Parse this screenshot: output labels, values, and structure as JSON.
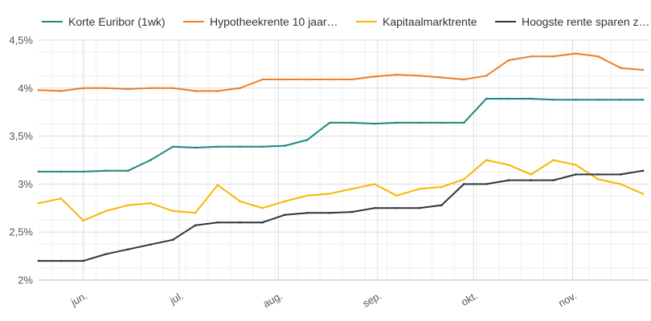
{
  "chart_data": {
    "type": "line",
    "title": "",
    "xlabel": "",
    "ylabel": "",
    "ylim": [
      2,
      4.5
    ],
    "grid": true,
    "legend_position": "top",
    "x_ticks": [
      "jun.",
      "jul.",
      "aug.",
      "sep.",
      "okt.",
      "nov."
    ],
    "y_ticks": [
      "2%",
      "2,5%",
      "3%",
      "3,5%",
      "4%",
      "4,5%"
    ],
    "y_tick_values": [
      2,
      2.5,
      3,
      3.5,
      4,
      4.5
    ],
    "x": [
      "2022-05-18",
      "2022-05-25",
      "2022-06-01",
      "2022-06-08",
      "2022-06-15",
      "2022-06-22",
      "2022-06-29",
      "2022-07-06",
      "2022-07-13",
      "2022-07-20",
      "2022-07-27",
      "2022-08-03",
      "2022-08-10",
      "2022-08-17",
      "2022-08-24",
      "2022-08-31",
      "2022-09-07",
      "2022-09-14",
      "2022-09-21",
      "2022-09-28",
      "2022-10-05",
      "2022-10-12",
      "2022-10-19",
      "2022-10-26",
      "2022-11-02",
      "2022-11-09",
      "2022-11-16",
      "2022-11-23"
    ],
    "series": [
      {
        "name": "Korte Euribor (1wk)",
        "color": "#1a8a7f",
        "values": [
          3.13,
          3.13,
          3.13,
          3.14,
          3.14,
          3.25,
          3.39,
          3.38,
          3.39,
          3.39,
          3.39,
          3.4,
          3.46,
          3.64,
          3.64,
          3.63,
          3.64,
          3.64,
          3.64,
          3.64,
          3.89,
          3.89,
          3.89,
          3.88,
          3.88,
          3.88,
          3.88,
          3.88
        ]
      },
      {
        "name": "Hypotheekrente 10 jaar…",
        "color": "#ef7d22",
        "values": [
          3.98,
          3.97,
          4.0,
          4.0,
          3.99,
          4.0,
          4.0,
          3.97,
          3.97,
          4.0,
          4.09,
          4.09,
          4.09,
          4.09,
          4.09,
          4.12,
          4.14,
          4.13,
          4.11,
          4.09,
          4.13,
          4.29,
          4.33,
          4.33,
          4.36,
          4.33,
          4.21,
          4.19
        ]
      },
      {
        "name": "Kapitaalmarktrente",
        "color": "#f5b800",
        "values": [
          2.8,
          2.85,
          2.62,
          2.72,
          2.78,
          2.8,
          2.72,
          2.7,
          2.99,
          2.82,
          2.75,
          2.82,
          2.88,
          2.9,
          2.95,
          3.0,
          2.88,
          2.95,
          2.97,
          3.05,
          3.25,
          3.2,
          3.1,
          3.25,
          3.2,
          3.05,
          3.0,
          2.9
        ]
      },
      {
        "name": "Hoogste rente sparen z…",
        "color": "#2d3440",
        "values": [
          2.2,
          2.2,
          2.2,
          2.27,
          2.32,
          2.37,
          2.42,
          2.57,
          2.6,
          2.6,
          2.6,
          2.68,
          2.7,
          2.7,
          2.71,
          2.75,
          2.75,
          2.75,
          2.78,
          3.0,
          3.0,
          3.04,
          3.04,
          3.04,
          3.1,
          3.1,
          3.1,
          3.14
        ]
      }
    ]
  }
}
